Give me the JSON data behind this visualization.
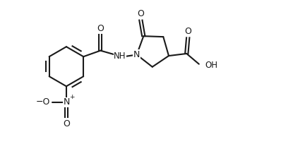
{
  "bg_color": "#ffffff",
  "line_color": "#1a1a1a",
  "line_width": 1.5,
  "font_size": 8.5,
  "figure_size": [
    3.98,
    2.04
  ],
  "dpi": 100,
  "xlim": [
    0,
    10
  ],
  "ylim": [
    0,
    5.1
  ]
}
